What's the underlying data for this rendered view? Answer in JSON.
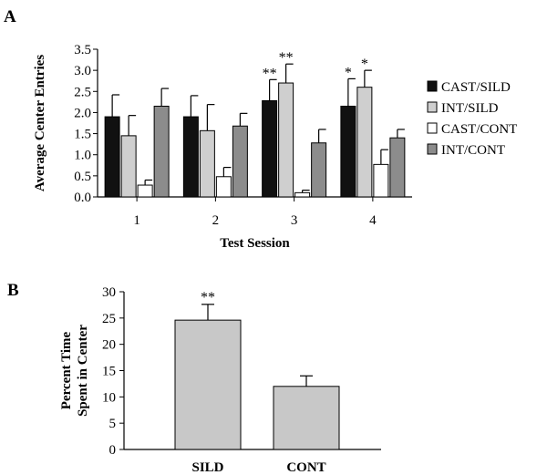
{
  "panels": {
    "a_label": "A",
    "b_label": "B"
  },
  "chart_data": [
    {
      "type": "bar",
      "panel": "A",
      "title": "",
      "xlabel": "Test Session",
      "ylabel": "Average Center Entries",
      "categories": [
        "1",
        "2",
        "3",
        "4"
      ],
      "ylim": [
        0,
        3.5
      ],
      "yticks": [
        "0.0",
        "0.5",
        "1.0",
        "1.5",
        "2.0",
        "2.5",
        "3.0",
        "3.5"
      ],
      "legend_position": "right",
      "series": [
        {
          "name": "CAST/SILD",
          "color": "#111111",
          "values": [
            1.9,
            1.9,
            2.28,
            2.15
          ],
          "errors": [
            0.52,
            0.5,
            0.5,
            0.65
          ],
          "sig": [
            "",
            "",
            "**",
            "*"
          ]
        },
        {
          "name": "INT/SILD",
          "color": "#cfcfcf",
          "values": [
            1.45,
            1.57,
            2.7,
            2.6
          ],
          "errors": [
            0.48,
            0.62,
            0.45,
            0.4
          ],
          "sig": [
            "",
            "",
            "**",
            "*"
          ]
        },
        {
          "name": "CAST/CONT",
          "color": "#ffffff",
          "values": [
            0.28,
            0.48,
            0.1,
            0.77
          ],
          "errors": [
            0.12,
            0.22,
            0.06,
            0.35
          ],
          "sig": [
            "",
            "",
            "",
            ""
          ]
        },
        {
          "name": "INT/CONT",
          "color": "#8c8c8c",
          "values": [
            2.15,
            1.68,
            1.28,
            1.4
          ],
          "errors": [
            0.42,
            0.3,
            0.32,
            0.2
          ],
          "sig": [
            "",
            "",
            "",
            ""
          ]
        }
      ]
    },
    {
      "type": "bar",
      "panel": "B",
      "title": "",
      "xlabel": "",
      "ylabel_line1": "Percent Time",
      "ylabel_line2": "Spent in Center",
      "categories": [
        "SILD",
        "CONT"
      ],
      "ylim": [
        0,
        30
      ],
      "yticks": [
        "0",
        "5",
        "10",
        "15",
        "20",
        "25",
        "30"
      ],
      "values": [
        24.6,
        12.0
      ],
      "errors": [
        3.0,
        2.0
      ],
      "sig": [
        "**",
        ""
      ],
      "color": "#c8c8c8"
    }
  ]
}
